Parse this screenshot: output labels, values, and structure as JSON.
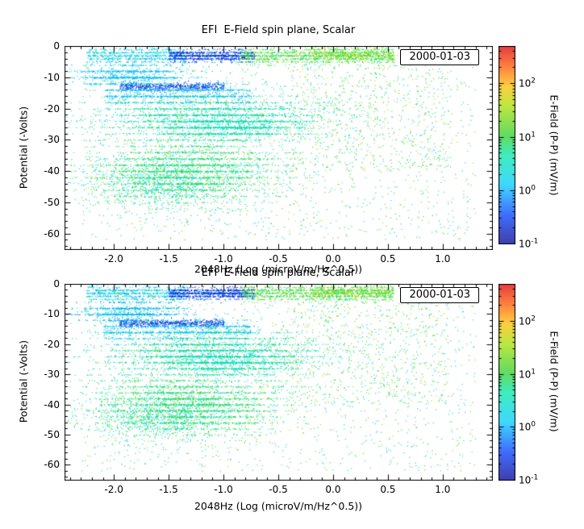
{
  "colors": {
    "background": "#ffffff",
    "axis": "#000000",
    "text": "#000000"
  },
  "chart_data": {
    "type": "scatter",
    "title": "EFI  E-Field spin plane, Scalar",
    "date": "2000-01-03",
    "xlabel": "2048Hz (Log (microV/m/Hz^0.5))",
    "ylabel": "Potential (-Volts)",
    "xlim": [
      -2.45,
      1.45
    ],
    "ylim": [
      -65,
      0
    ],
    "xticks": [
      -2.0,
      -1.5,
      -1.0,
      -0.5,
      0.0,
      0.5,
      1.0
    ],
    "yticks": [
      0,
      -10,
      -20,
      -30,
      -40,
      -50,
      -60
    ],
    "grid": false,
    "legend": "none",
    "color_scale": {
      "label": "E-Field (P-P) (mV/m)",
      "type": "log",
      "min": 0.1,
      "max": 500,
      "ticks": [
        100,
        10,
        1,
        0.1
      ]
    },
    "colormap": [
      [
        0.0,
        "#000090"
      ],
      [
        0.15,
        "#0040ff"
      ],
      [
        0.3,
        "#00ccff"
      ],
      [
        0.45,
        "#00e8a8"
      ],
      [
        0.55,
        "#2fd02f"
      ],
      [
        0.7,
        "#a8e000"
      ],
      [
        0.8,
        "#ffc000"
      ],
      [
        0.9,
        "#ff5800"
      ],
      [
        1.0,
        "#dd0000"
      ]
    ],
    "panels": [
      {
        "position": "top",
        "seed": 42
      },
      {
        "position": "bottom",
        "seed": 1337
      }
    ],
    "clusters": [
      {
        "n": 700,
        "x": [
          "u",
          -2.25,
          -1.35
        ],
        "y": [
          "g",
          -3,
          1.4
        ],
        "v": [
          0.7,
          4
        ],
        "q": 1
      },
      {
        "n": 900,
        "x": [
          "u",
          -1.5,
          -0.72
        ],
        "y": [
          "g",
          -3,
          0.9
        ],
        "v": [
          0.12,
          0.7
        ],
        "q": 1
      },
      {
        "n": 1100,
        "x": [
          "u",
          -0.85,
          0.55
        ],
        "y": [
          "g",
          -3,
          1.3
        ],
        "v": [
          4,
          40
        ],
        "q": 1
      },
      {
        "n": 350,
        "x": [
          "u",
          -0.2,
          0.55
        ],
        "y": [
          "g",
          -2.5,
          0.9
        ],
        "v": [
          8,
          60
        ],
        "q": 0
      },
      {
        "n": 900,
        "x": [
          "g",
          -1.85,
          0.25
        ],
        "y": [
          "g",
          -9.5,
          1.6
        ],
        "v": [
          0.6,
          3
        ],
        "q": 2
      },
      {
        "n": 550,
        "x": [
          "u",
          -1.95,
          -1.0
        ],
        "y": [
          "g",
          -13,
          0.6
        ],
        "v": [
          0.15,
          0.6
        ],
        "q": 0
      },
      {
        "n": 900,
        "x": [
          "u",
          -2.1,
          -0.75
        ],
        "y": [
          "g",
          -15.5,
          1.6
        ],
        "v": [
          0.7,
          3
        ],
        "q": 2
      },
      {
        "n": 2300,
        "x": [
          "g",
          -1.1,
          0.5
        ],
        "y": [
          "g",
          -23,
          3.8
        ],
        "v": [
          1,
          14
        ],
        "q": 2
      },
      {
        "n": 700,
        "x": [
          "g",
          -0.95,
          0.3
        ],
        "y": [
          "g",
          -26,
          2.0
        ],
        "v": [
          1.5,
          8
        ],
        "q": 2
      },
      {
        "n": 2600,
        "x": [
          "g",
          -1.3,
          0.42
        ],
        "y": [
          "g",
          -40,
          5.0
        ],
        "v": [
          2,
          25
        ],
        "q": 2
      },
      {
        "n": 700,
        "x": [
          "g",
          -1.6,
          0.35
        ],
        "y": [
          "g",
          -44,
          4.0
        ],
        "v": [
          1.5,
          12
        ],
        "q": 0
      },
      {
        "n": 1400,
        "x": [
          "u",
          -2.3,
          1.3
        ],
        "y": [
          "u",
          -62,
          -1
        ],
        "v": [
          1,
          40
        ],
        "q": 0
      },
      {
        "n": 550,
        "x": [
          "u",
          -0.4,
          1.05
        ],
        "y": [
          "u",
          -40,
          -4
        ],
        "v": [
          3,
          50
        ],
        "q": 0
      }
    ]
  }
}
